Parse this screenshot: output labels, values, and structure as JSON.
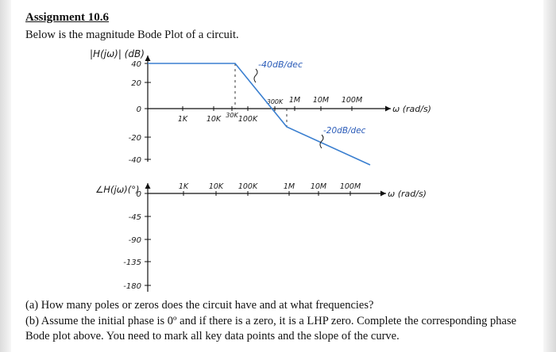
{
  "title": "Assignment 10.6",
  "intro": "Below is the magnitude Bode Plot of a circuit.",
  "magnitude_plot": {
    "y_axis_label": "|H(jω)| (dB)",
    "x_axis_label": "ω (rad/s)",
    "y_ticks": [
      "40",
      "20",
      "0",
      "-20",
      "-40"
    ],
    "x_ticks_below": [
      "1K",
      "10K",
      "30K",
      "100K"
    ],
    "x_ticks_above": [
      "300K",
      "1M",
      "10M",
      "100M"
    ],
    "slope_labels": [
      "-40dB/dec",
      "-20dB/dec"
    ]
  },
  "phase_plot": {
    "y_axis_label": "∠H(jω)(°)",
    "x_axis_label": "ω (rad/s)",
    "y_ticks": [
      "0",
      "-45",
      "-90",
      "-135",
      "-180"
    ],
    "x_ticks": [
      "1K",
      "10K",
      "100K",
      "1M",
      "10M",
      "100M"
    ]
  },
  "question_a": "(a) How many poles or zeros does the circuit have and at what frequencies?",
  "question_b": "(b) Assume the initial phase is 0º and if there is a zero, it is a LHP zero. Complete the corresponding phase Bode plot above. You need to mark all key data points and the slope of the curve.",
  "chart_data": [
    {
      "type": "line",
      "title": "",
      "xlabel": "ω (rad/s)",
      "ylabel": "|H(jω)| (dB)",
      "x_scale": "log",
      "x": [
        30000,
        300000,
        10000000
      ],
      "y": [
        40,
        0,
        -30
      ],
      "annotations": [
        "-40dB/dec",
        "-20dB/dec"
      ],
      "ylim": [
        -40,
        40
      ]
    },
    {
      "type": "line",
      "title": "",
      "xlabel": "ω (rad/s)",
      "ylabel": "∠H(jω)(°)",
      "x_scale": "log",
      "x": [],
      "y": [],
      "ylim": [
        -180,
        0
      ]
    }
  ]
}
